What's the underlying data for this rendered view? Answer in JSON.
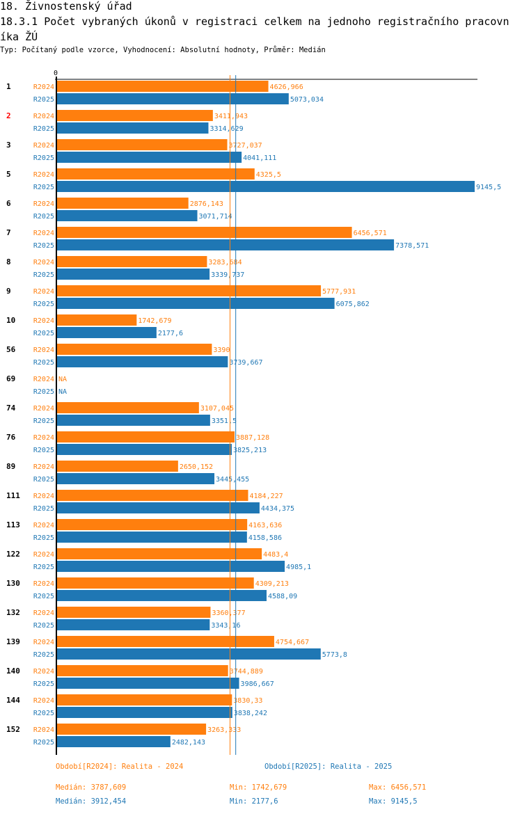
{
  "header": {
    "section": "18. Živnostenský úřad",
    "title": "18.3.1 Počet vybraných úkonů v registraci celkem na jednoho registračního pracovníka ŽÚ",
    "subtitle": "Typ: Počítaný podle vzorce, Vyhodnocení: Absolutní hodnoty, Průměr: Medián"
  },
  "colors": {
    "R2024": "#ff7f0e",
    "R2025": "#1f77b4",
    "highlight": "#ff0000",
    "axis": "#000000"
  },
  "chart_data": {
    "type": "bar",
    "orientation": "horizontal",
    "title": "18.3.1 Počet vybraných úkonů v registraci celkem na jednoho registračního pracovníka ŽÚ",
    "xlabel": "",
    "ylabel": "",
    "axis_zero_label": "0",
    "xlim": [
      0,
      9145.5
    ],
    "categories": [
      "1",
      "2",
      "3",
      "5",
      "6",
      "7",
      "8",
      "9",
      "10",
      "56",
      "69",
      "74",
      "76",
      "89",
      "111",
      "113",
      "122",
      "130",
      "132",
      "139",
      "140",
      "144",
      "152"
    ],
    "highlighted_category": "2",
    "series": [
      {
        "name": "R2024",
        "labels": [
          "4626,966",
          "3411,943",
          "3727,037",
          "4325,5",
          "2876,143",
          "6456,571",
          "3283,684",
          "5777,931",
          "1742,679",
          "3390",
          "NA",
          "3107,045",
          "3887,128",
          "2650,152",
          "4184,227",
          "4163,636",
          "4483,4",
          "4309,213",
          "3360,377",
          "4754,667",
          "3744,889",
          "3830,33",
          "3263,333"
        ],
        "values": [
          4626.966,
          3411.943,
          3727.037,
          4325.5,
          2876.143,
          6456.571,
          3283.684,
          5777.931,
          1742.679,
          3390,
          null,
          3107.045,
          3887.128,
          2650.152,
          4184.227,
          4163.636,
          4483.4,
          4309.213,
          3360.377,
          4754.667,
          3744.889,
          3830.33,
          3263.333
        ]
      },
      {
        "name": "R2025",
        "labels": [
          "5073,034",
          "3314,629",
          "4041,111",
          "9145,5",
          "3071,714",
          "7378,571",
          "3339,737",
          "6075,862",
          "2177,6",
          "3739,667",
          "NA",
          "3351,5",
          "3825,213",
          "3445,455",
          "4434,375",
          "4158,586",
          "4985,1",
          "4588,09",
          "3343,16",
          "5773,8",
          "3986,667",
          "3838,242",
          "2482,143"
        ],
        "values": [
          5073.034,
          3314.629,
          4041.111,
          9145.5,
          3071.714,
          7378.571,
          3339.737,
          6075.862,
          2177.6,
          3739.667,
          null,
          3351.5,
          3825.213,
          3445.455,
          4434.375,
          4158.586,
          4985.1,
          4588.09,
          3343.16,
          5773.8,
          3986.667,
          3838.242,
          2482.143
        ]
      }
    ],
    "reference_lines": [
      {
        "series": "R2024",
        "type": "median",
        "value": 3787.609
      },
      {
        "series": "R2025",
        "type": "median",
        "value": 3912.454
      }
    ],
    "legend": [
      {
        "series": "R2024",
        "label": "Období[R2024]: Realita - 2024"
      },
      {
        "series": "R2025",
        "label": "Období[R2025]: Realita - 2025"
      }
    ],
    "stats": [
      {
        "series": "R2024",
        "median": "Medián: 3787,609",
        "min": "Min: 1742,679",
        "max": "Max: 6456,571"
      },
      {
        "series": "R2025",
        "median": "Medián: 3912,454",
        "min": "Min: 2177,6",
        "max": "Max: 9145,5"
      }
    ],
    "grid": false,
    "legend_position": "bottom"
  }
}
